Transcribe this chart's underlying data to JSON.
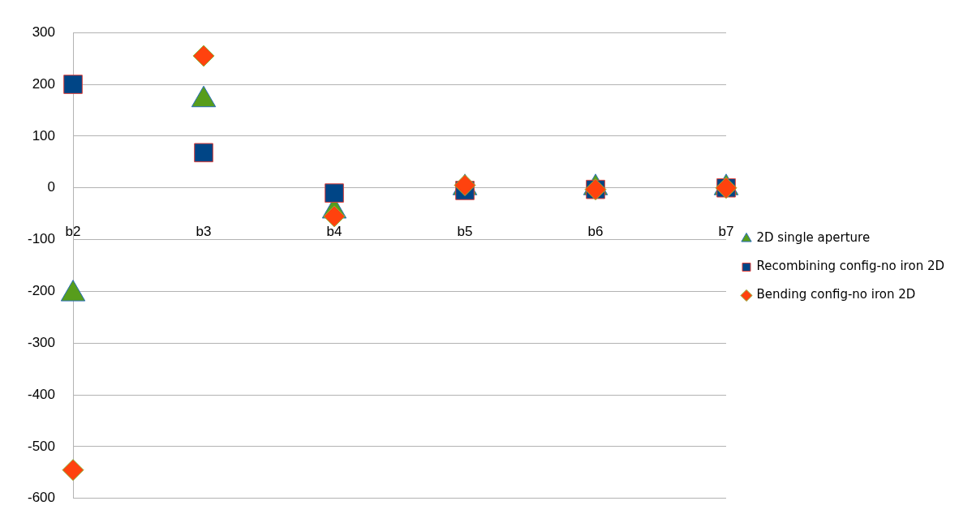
{
  "chart_data": {
    "type": "scatter",
    "categories": [
      "b2",
      "b3",
      "b4",
      "b5",
      "b6",
      "b7"
    ],
    "series": [
      {
        "name": "2D single aperture",
        "color": "#579d1c",
        "marker": "triangle",
        "values": [
          -205,
          170,
          -45,
          0,
          0,
          0
        ]
      },
      {
        "name": "Recombining config-no iron 2D",
        "color": "#004586",
        "marker": "square",
        "values": [
          200,
          68,
          -10,
          -5,
          -3,
          0
        ]
      },
      {
        "name": "Bending config-no iron 2D",
        "color": "#ff420e",
        "marker": "diamond",
        "values": [
          -545,
          255,
          -55,
          5,
          -3,
          0
        ]
      }
    ],
    "ylim": [
      -600,
      300
    ],
    "yticks": [
      -600,
      -500,
      -400,
      -300,
      -200,
      -100,
      0,
      100,
      200,
      300
    ],
    "grid": "y",
    "legend": "right"
  }
}
